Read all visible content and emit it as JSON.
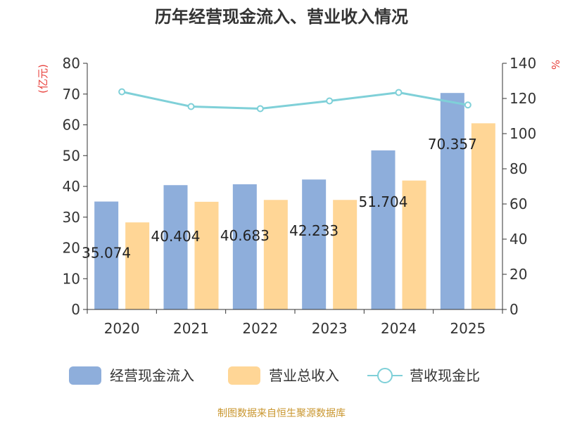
{
  "chart_data": {
    "type": "bar",
    "title": "历年经营现金流入、营业收入情况",
    "categories": [
      "2020",
      "2021",
      "2022",
      "2023",
      "2024",
      "2025"
    ],
    "series": [
      {
        "name": "经营现金流入",
        "type": "bar",
        "axis": "left",
        "color": "#8eaedb",
        "values": [
          35.074,
          40.404,
          40.683,
          42.233,
          51.704,
          70.357
        ]
      },
      {
        "name": "营业总收入",
        "type": "bar",
        "axis": "left",
        "color": "#ffd696",
        "values": [
          28.3,
          35.0,
          35.6,
          35.6,
          41.9,
          60.5
        ]
      },
      {
        "name": "营收现金比",
        "type": "line",
        "axis": "right",
        "color": "#7fd0d8",
        "values": [
          123.8,
          115.4,
          114.2,
          118.6,
          123.4,
          116.3
        ]
      }
    ],
    "data_labels": [
      "35.074",
      "40.404",
      "40.683",
      "42.233",
      "51.704",
      "70.357"
    ],
    "y_left": {
      "label": "(亿元)",
      "min": 0,
      "max": 80,
      "ticks": [
        0,
        10,
        20,
        30,
        40,
        50,
        60,
        70,
        80
      ]
    },
    "y_right": {
      "label": "%",
      "min": 0,
      "max": 140,
      "ticks": [
        0,
        20,
        40,
        60,
        80,
        100,
        120,
        140
      ]
    },
    "legend_position": "bottom",
    "grid": false,
    "source": "制图数据来自恒生聚源数据库"
  },
  "colors": {
    "axis_unit": "#e8413c",
    "source": "#c9962e",
    "axis": "#333333"
  }
}
